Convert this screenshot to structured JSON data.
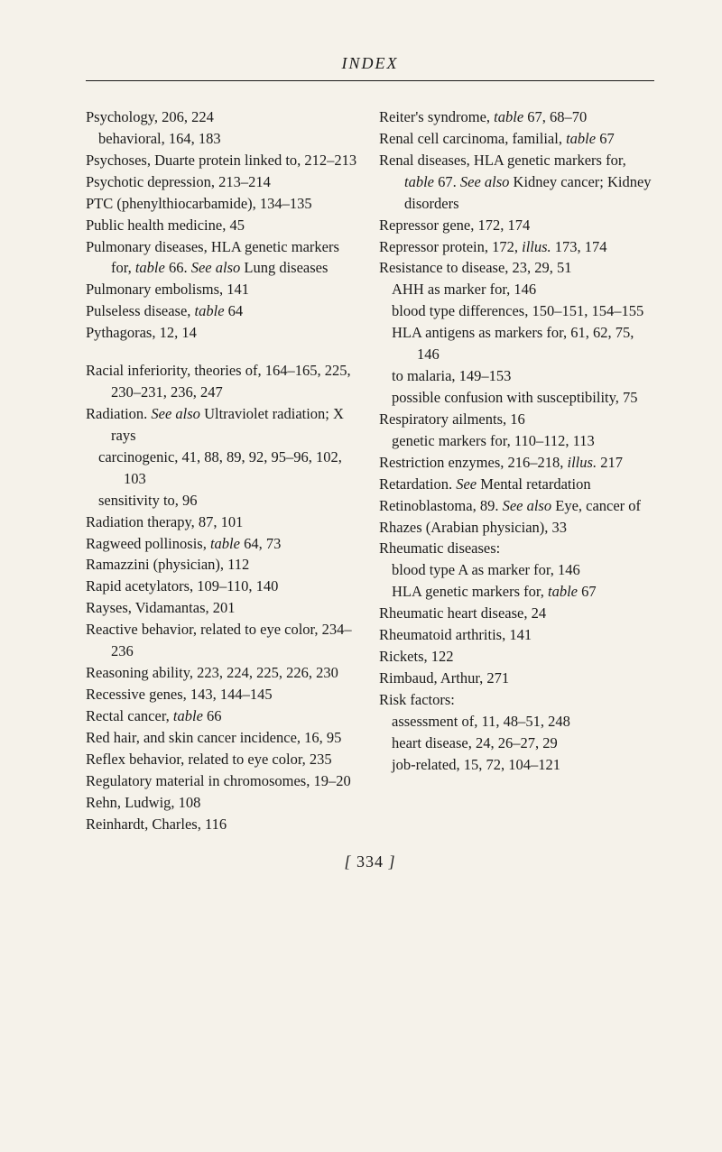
{
  "header": "INDEX",
  "pageNumber": {
    "open": "[",
    "num": "334",
    "close": "]"
  },
  "left": [
    {
      "cls": "entry",
      "t": "Psychology, 206, 224"
    },
    {
      "cls": "sub",
      "t": "behavioral, 164, 183"
    },
    {
      "cls": "entry",
      "t": "Psychoses, Duarte protein linked to, 212–213"
    },
    {
      "cls": "entry",
      "t": "Psychotic depression, 213–214"
    },
    {
      "cls": "entry",
      "t": "PTC (phenylthiocarbamide), 134–135"
    },
    {
      "cls": "entry",
      "t": "Public health medicine, 45"
    },
    {
      "cls": "entry",
      "parts": [
        {
          "text": "Pulmonary diseases, HLA genetic markers for, "
        },
        {
          "text": "table",
          "italic": true
        },
        {
          "text": " 66. "
        },
        {
          "text": "See also",
          "italic": true
        },
        {
          "text": " Lung diseases"
        }
      ]
    },
    {
      "cls": "entry",
      "t": "Pulmonary embolisms, 141"
    },
    {
      "cls": "entry",
      "parts": [
        {
          "text": "Pulseless disease, "
        },
        {
          "text": "table",
          "italic": true
        },
        {
          "text": " 64"
        }
      ]
    },
    {
      "cls": "entry",
      "t": "Pythagoras, 12, 14"
    },
    {
      "cls": "gap"
    },
    {
      "cls": "entry",
      "t": "Racial inferiority, theories of, 164–165, 225, 230–231, 236, 247"
    },
    {
      "cls": "entry",
      "parts": [
        {
          "text": "Radiation. "
        },
        {
          "text": "See also",
          "italic": true
        },
        {
          "text": " Ultraviolet radiation; X rays"
        }
      ]
    },
    {
      "cls": "sub",
      "t": "carcinogenic, 41, 88, 89, 92, 95–96, 102, 103"
    },
    {
      "cls": "sub",
      "t": "sensitivity to, 96"
    },
    {
      "cls": "entry",
      "t": "Radiation therapy, 87, 101"
    },
    {
      "cls": "entry",
      "parts": [
        {
          "text": "Ragweed pollinosis, "
        },
        {
          "text": "table",
          "italic": true
        },
        {
          "text": " 64, 73"
        }
      ]
    },
    {
      "cls": "entry",
      "t": "Ramazzini (physician), 112"
    },
    {
      "cls": "entry",
      "t": "Rapid acetylators, 109–110, 140"
    },
    {
      "cls": "entry",
      "t": "Rayses, Vidamantas, 201"
    },
    {
      "cls": "entry",
      "t": "Reactive behavior, related to eye color, 234–236"
    },
    {
      "cls": "entry",
      "t": "Reasoning ability, 223, 224, 225, 226, 230"
    },
    {
      "cls": "entry",
      "t": "Recessive genes, 143, 144–145"
    },
    {
      "cls": "entry",
      "parts": [
        {
          "text": "Rectal cancer, "
        },
        {
          "text": "table",
          "italic": true
        },
        {
          "text": " 66"
        }
      ]
    },
    {
      "cls": "entry",
      "t": "Red hair, and skin cancer incidence, 16, 95"
    },
    {
      "cls": "entry",
      "t": "Reflex behavior, related to eye color, 235"
    },
    {
      "cls": "entry",
      "t": "Regulatory material in chromosomes, 19–20"
    },
    {
      "cls": "entry",
      "t": "Rehn, Ludwig, 108"
    },
    {
      "cls": "entry",
      "t": "Reinhardt, Charles, 116"
    }
  ],
  "right": [
    {
      "cls": "entry",
      "parts": [
        {
          "text": "Reiter's syndrome, "
        },
        {
          "text": "table",
          "italic": true
        },
        {
          "text": " 67, 68–70"
        }
      ]
    },
    {
      "cls": "entry",
      "parts": [
        {
          "text": "Renal cell carcinoma, familial, "
        },
        {
          "text": "table",
          "italic": true
        },
        {
          "text": " 67"
        }
      ]
    },
    {
      "cls": "entry",
      "parts": [
        {
          "text": "Renal diseases, HLA genetic markers for, "
        },
        {
          "text": "table",
          "italic": true
        },
        {
          "text": " 67. "
        },
        {
          "text": "See also",
          "italic": true
        },
        {
          "text": " Kidney cancer; Kidney disorders"
        }
      ]
    },
    {
      "cls": "entry",
      "t": "Repressor gene, 172, 174"
    },
    {
      "cls": "entry",
      "parts": [
        {
          "text": "Repressor protein, 172, "
        },
        {
          "text": "illus.",
          "italic": true
        },
        {
          "text": " 173, 174"
        }
      ]
    },
    {
      "cls": "entry",
      "t": "Resistance to disease, 23, 29, 51"
    },
    {
      "cls": "sub",
      "t": "AHH as marker for, 146"
    },
    {
      "cls": "sub",
      "t": "blood type differences, 150–151, 154–155"
    },
    {
      "cls": "sub",
      "t": "HLA antigens as markers for, 61, 62, 75, 146"
    },
    {
      "cls": "sub",
      "t": "to malaria, 149–153"
    },
    {
      "cls": "sub",
      "t": "possible confusion with susceptibility, 75"
    },
    {
      "cls": "entry",
      "t": "Respiratory ailments, 16"
    },
    {
      "cls": "sub",
      "t": "genetic markers for, 110–112, 113"
    },
    {
      "cls": "entry",
      "parts": [
        {
          "text": "Restriction enzymes, 216–218, "
        },
        {
          "text": "illus.",
          "italic": true
        },
        {
          "text": " 217"
        }
      ]
    },
    {
      "cls": "entry",
      "parts": [
        {
          "text": "Retardation. "
        },
        {
          "text": "See",
          "italic": true
        },
        {
          "text": " Mental retardation"
        }
      ]
    },
    {
      "cls": "entry",
      "parts": [
        {
          "text": "Retinoblastoma, 89. "
        },
        {
          "text": "See also",
          "italic": true
        },
        {
          "text": " Eye, cancer of"
        }
      ]
    },
    {
      "cls": "entry",
      "t": "Rhazes (Arabian physician), 33"
    },
    {
      "cls": "entry",
      "t": "Rheumatic diseases:"
    },
    {
      "cls": "sub",
      "t": "blood type A as marker for, 146"
    },
    {
      "cls": "sub",
      "parts": [
        {
          "text": "HLA genetic markers for, "
        },
        {
          "text": "table",
          "italic": true
        },
        {
          "text": " 67"
        }
      ]
    },
    {
      "cls": "entry",
      "t": "Rheumatic heart disease, 24"
    },
    {
      "cls": "entry",
      "t": "Rheumatoid arthritis, 141"
    },
    {
      "cls": "entry",
      "t": "Rickets, 122"
    },
    {
      "cls": "entry",
      "t": "Rimbaud, Arthur, 271"
    },
    {
      "cls": "entry",
      "t": "Risk factors:"
    },
    {
      "cls": "sub",
      "t": "assessment of, 11, 48–51, 248"
    },
    {
      "cls": "sub",
      "t": "heart disease, 24, 26–27, 29"
    },
    {
      "cls": "sub",
      "t": "job-related, 15, 72, 104–121"
    }
  ]
}
